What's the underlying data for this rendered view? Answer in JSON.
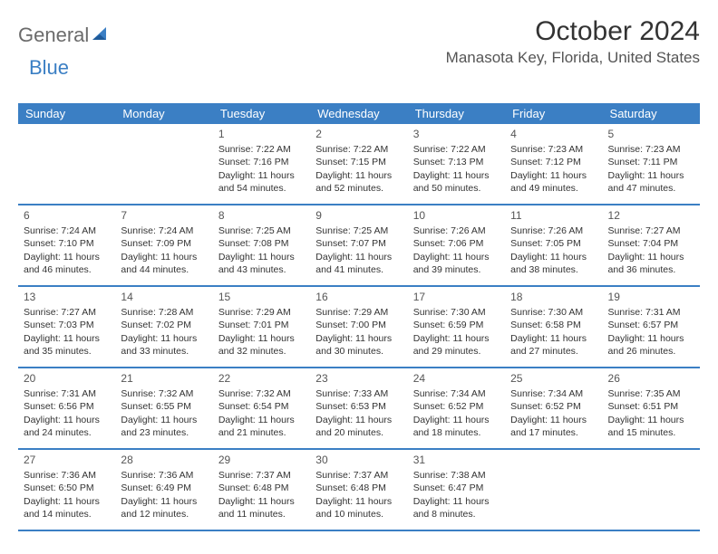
{
  "logo": {
    "text_gray": "General",
    "text_blue": "Blue"
  },
  "title": "October 2024",
  "location": "Manasota Key, Florida, United States",
  "colors": {
    "header_bg": "#3b7fc4",
    "header_text": "#ffffff",
    "body_text": "#333333",
    "row_border": "#3b7fc4",
    "logo_gray": "#6b6b6b",
    "logo_blue": "#3b7fc4"
  },
  "day_headers": [
    "Sunday",
    "Monday",
    "Tuesday",
    "Wednesday",
    "Thursday",
    "Friday",
    "Saturday"
  ],
  "weeks": [
    [
      {
        "blank": true
      },
      {
        "blank": true
      },
      {
        "n": "1",
        "sr": "Sunrise: 7:22 AM",
        "ss": "Sunset: 7:16 PM",
        "d1": "Daylight: 11 hours",
        "d2": "and 54 minutes."
      },
      {
        "n": "2",
        "sr": "Sunrise: 7:22 AM",
        "ss": "Sunset: 7:15 PM",
        "d1": "Daylight: 11 hours",
        "d2": "and 52 minutes."
      },
      {
        "n": "3",
        "sr": "Sunrise: 7:22 AM",
        "ss": "Sunset: 7:13 PM",
        "d1": "Daylight: 11 hours",
        "d2": "and 50 minutes."
      },
      {
        "n": "4",
        "sr": "Sunrise: 7:23 AM",
        "ss": "Sunset: 7:12 PM",
        "d1": "Daylight: 11 hours",
        "d2": "and 49 minutes."
      },
      {
        "n": "5",
        "sr": "Sunrise: 7:23 AM",
        "ss": "Sunset: 7:11 PM",
        "d1": "Daylight: 11 hours",
        "d2": "and 47 minutes."
      }
    ],
    [
      {
        "n": "6",
        "sr": "Sunrise: 7:24 AM",
        "ss": "Sunset: 7:10 PM",
        "d1": "Daylight: 11 hours",
        "d2": "and 46 minutes."
      },
      {
        "n": "7",
        "sr": "Sunrise: 7:24 AM",
        "ss": "Sunset: 7:09 PM",
        "d1": "Daylight: 11 hours",
        "d2": "and 44 minutes."
      },
      {
        "n": "8",
        "sr": "Sunrise: 7:25 AM",
        "ss": "Sunset: 7:08 PM",
        "d1": "Daylight: 11 hours",
        "d2": "and 43 minutes."
      },
      {
        "n": "9",
        "sr": "Sunrise: 7:25 AM",
        "ss": "Sunset: 7:07 PM",
        "d1": "Daylight: 11 hours",
        "d2": "and 41 minutes."
      },
      {
        "n": "10",
        "sr": "Sunrise: 7:26 AM",
        "ss": "Sunset: 7:06 PM",
        "d1": "Daylight: 11 hours",
        "d2": "and 39 minutes."
      },
      {
        "n": "11",
        "sr": "Sunrise: 7:26 AM",
        "ss": "Sunset: 7:05 PM",
        "d1": "Daylight: 11 hours",
        "d2": "and 38 minutes."
      },
      {
        "n": "12",
        "sr": "Sunrise: 7:27 AM",
        "ss": "Sunset: 7:04 PM",
        "d1": "Daylight: 11 hours",
        "d2": "and 36 minutes."
      }
    ],
    [
      {
        "n": "13",
        "sr": "Sunrise: 7:27 AM",
        "ss": "Sunset: 7:03 PM",
        "d1": "Daylight: 11 hours",
        "d2": "and 35 minutes."
      },
      {
        "n": "14",
        "sr": "Sunrise: 7:28 AM",
        "ss": "Sunset: 7:02 PM",
        "d1": "Daylight: 11 hours",
        "d2": "and 33 minutes."
      },
      {
        "n": "15",
        "sr": "Sunrise: 7:29 AM",
        "ss": "Sunset: 7:01 PM",
        "d1": "Daylight: 11 hours",
        "d2": "and 32 minutes."
      },
      {
        "n": "16",
        "sr": "Sunrise: 7:29 AM",
        "ss": "Sunset: 7:00 PM",
        "d1": "Daylight: 11 hours",
        "d2": "and 30 minutes."
      },
      {
        "n": "17",
        "sr": "Sunrise: 7:30 AM",
        "ss": "Sunset: 6:59 PM",
        "d1": "Daylight: 11 hours",
        "d2": "and 29 minutes."
      },
      {
        "n": "18",
        "sr": "Sunrise: 7:30 AM",
        "ss": "Sunset: 6:58 PM",
        "d1": "Daylight: 11 hours",
        "d2": "and 27 minutes."
      },
      {
        "n": "19",
        "sr": "Sunrise: 7:31 AM",
        "ss": "Sunset: 6:57 PM",
        "d1": "Daylight: 11 hours",
        "d2": "and 26 minutes."
      }
    ],
    [
      {
        "n": "20",
        "sr": "Sunrise: 7:31 AM",
        "ss": "Sunset: 6:56 PM",
        "d1": "Daylight: 11 hours",
        "d2": "and 24 minutes."
      },
      {
        "n": "21",
        "sr": "Sunrise: 7:32 AM",
        "ss": "Sunset: 6:55 PM",
        "d1": "Daylight: 11 hours",
        "d2": "and 23 minutes."
      },
      {
        "n": "22",
        "sr": "Sunrise: 7:32 AM",
        "ss": "Sunset: 6:54 PM",
        "d1": "Daylight: 11 hours",
        "d2": "and 21 minutes."
      },
      {
        "n": "23",
        "sr": "Sunrise: 7:33 AM",
        "ss": "Sunset: 6:53 PM",
        "d1": "Daylight: 11 hours",
        "d2": "and 20 minutes."
      },
      {
        "n": "24",
        "sr": "Sunrise: 7:34 AM",
        "ss": "Sunset: 6:52 PM",
        "d1": "Daylight: 11 hours",
        "d2": "and 18 minutes."
      },
      {
        "n": "25",
        "sr": "Sunrise: 7:34 AM",
        "ss": "Sunset: 6:52 PM",
        "d1": "Daylight: 11 hours",
        "d2": "and 17 minutes."
      },
      {
        "n": "26",
        "sr": "Sunrise: 7:35 AM",
        "ss": "Sunset: 6:51 PM",
        "d1": "Daylight: 11 hours",
        "d2": "and 15 minutes."
      }
    ],
    [
      {
        "n": "27",
        "sr": "Sunrise: 7:36 AM",
        "ss": "Sunset: 6:50 PM",
        "d1": "Daylight: 11 hours",
        "d2": "and 14 minutes."
      },
      {
        "n": "28",
        "sr": "Sunrise: 7:36 AM",
        "ss": "Sunset: 6:49 PM",
        "d1": "Daylight: 11 hours",
        "d2": "and 12 minutes."
      },
      {
        "n": "29",
        "sr": "Sunrise: 7:37 AM",
        "ss": "Sunset: 6:48 PM",
        "d1": "Daylight: 11 hours",
        "d2": "and 11 minutes."
      },
      {
        "n": "30",
        "sr": "Sunrise: 7:37 AM",
        "ss": "Sunset: 6:48 PM",
        "d1": "Daylight: 11 hours",
        "d2": "and 10 minutes."
      },
      {
        "n": "31",
        "sr": "Sunrise: 7:38 AM",
        "ss": "Sunset: 6:47 PM",
        "d1": "Daylight: 11 hours",
        "d2": "and 8 minutes."
      },
      {
        "blank": true
      },
      {
        "blank": true
      }
    ]
  ]
}
